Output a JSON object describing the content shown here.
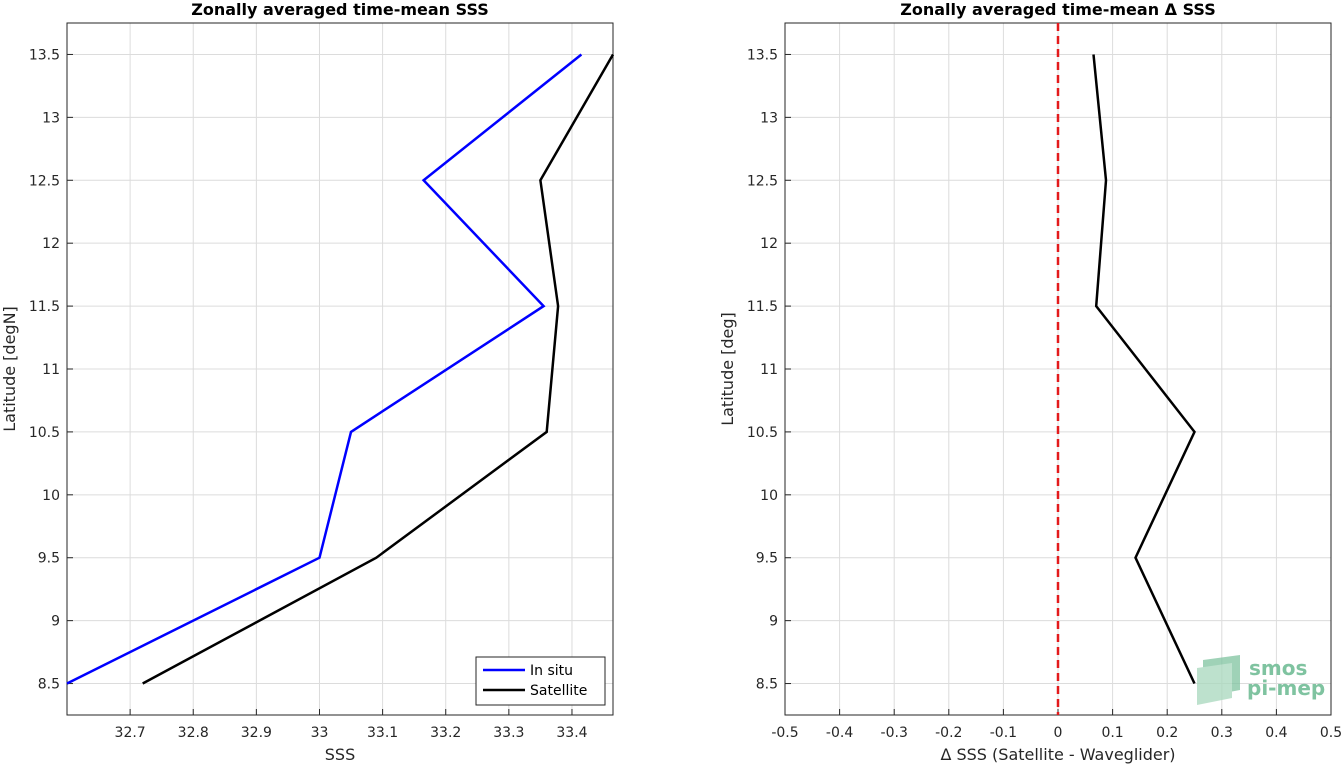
{
  "chart_data": [
    {
      "type": "line",
      "title": "Zonally averaged time-mean SSS",
      "xlabel": "SSS",
      "ylabel": "Latitude [degN]",
      "xlim": [
        32.6,
        33.465
      ],
      "ylim": [
        8.25,
        13.75
      ],
      "xticks": [
        "32.7",
        "32.8",
        "32.9",
        "33",
        "33.1",
        "33.2",
        "33.3",
        "33.4"
      ],
      "xtick_values": [
        32.7,
        32.8,
        32.9,
        33.0,
        33.1,
        33.2,
        33.3,
        33.4
      ],
      "yticks": [
        "8.5",
        "9",
        "9.5",
        "10",
        "10.5",
        "11",
        "11.5",
        "12",
        "12.5",
        "13",
        "13.5"
      ],
      "ytick_values": [
        8.5,
        9,
        9.5,
        10,
        10.5,
        11,
        11.5,
        12,
        12.5,
        13,
        13.5
      ],
      "grid": true,
      "legend_position": "bottom-right",
      "series": [
        {
          "name": "In situ",
          "color": "#0000ff",
          "points": [
            [
              32.6,
              8.5
            ],
            [
              33.0,
              9.5
            ],
            [
              33.05,
              10.5
            ],
            [
              33.355,
              11.5
            ],
            [
              33.165,
              12.5
            ],
            [
              33.415,
              13.5
            ]
          ]
        },
        {
          "name": "Satellite",
          "color": "#000000",
          "points": [
            [
              32.72,
              8.5
            ],
            [
              33.09,
              9.5
            ],
            [
              33.36,
              10.5
            ],
            [
              33.378,
              11.5
            ],
            [
              33.35,
              12.5
            ],
            [
              33.465,
              13.5
            ]
          ]
        }
      ]
    },
    {
      "type": "line",
      "title": "Zonally averaged time-mean Δ SSS",
      "xlabel": "Δ SSS (Satellite - Waveglider)",
      "ylabel": "Latitude [deg]",
      "xlim": [
        -0.5,
        0.5
      ],
      "ylim": [
        8.25,
        13.75
      ],
      "xticks": [
        "-0.5",
        "-0.4",
        "-0.3",
        "-0.2",
        "-0.1",
        "0",
        "0.1",
        "0.2",
        "0.3",
        "0.4",
        "0.5"
      ],
      "xtick_values": [
        -0.5,
        -0.4,
        -0.3,
        -0.2,
        -0.1,
        0,
        0.1,
        0.2,
        0.3,
        0.4,
        0.5
      ],
      "yticks": [
        "8.5",
        "9",
        "9.5",
        "10",
        "10.5",
        "11",
        "11.5",
        "12",
        "12.5",
        "13",
        "13.5"
      ],
      "ytick_values": [
        8.5,
        9,
        9.5,
        10,
        10.5,
        11,
        11.5,
        12,
        12.5,
        13,
        13.5
      ],
      "grid": true,
      "reference_line": {
        "x": 0,
        "color": "#e31a1c",
        "style": "dashed"
      },
      "series": [
        {
          "color": "#000000",
          "points": [
            [
              0.25,
              8.5
            ],
            [
              0.142,
              9.5
            ],
            [
              0.25,
              10.5
            ],
            [
              0.07,
              11.5
            ],
            [
              0.088,
              12.5
            ],
            [
              0.065,
              13.5
            ]
          ]
        }
      ]
    }
  ],
  "logo": {
    "line1": "smos",
    "line2": "pi-mep",
    "color": "#7fc3a0"
  }
}
